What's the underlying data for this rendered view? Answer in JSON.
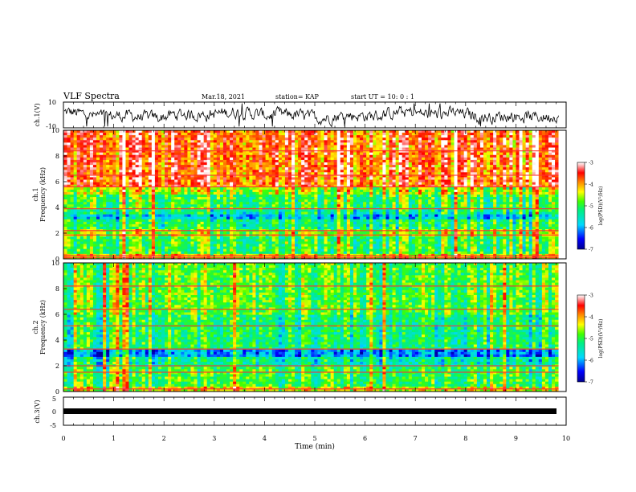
{
  "header": {
    "title": "VLF Spectra",
    "date": "Mar.18, 2021",
    "station": "station= KAP",
    "start": "start  UT =   10: 0  : 1"
  },
  "chart_data": [
    {
      "id": "ch1_waveform",
      "type": "line",
      "ylabel": "ch.1(V)",
      "ylim": [
        -10,
        10
      ],
      "yticks": [
        "10",
        "-10"
      ],
      "xlim": [
        0,
        10
      ],
      "series": [
        {
          "style": "noisy-trace",
          "color": "#000000",
          "mean": 0,
          "amplitude": 4.5,
          "x_end": 9.85
        }
      ]
    },
    {
      "id": "ch1_spectrogram",
      "type": "heatmap",
      "ylabel": "ch.1\nFrequency (kHz)",
      "ylim": [
        0,
        10
      ],
      "yticks": [
        "0",
        "2",
        "4",
        "6",
        "8",
        "10"
      ],
      "xlim": [
        0,
        10
      ],
      "x_end": 9.85,
      "bands_log_psd": [
        {
          "f": [
            0.0,
            0.3
          ],
          "v": -4.3
        },
        {
          "f": [
            0.3,
            1.8
          ],
          "v": -5.0
        },
        {
          "f": [
            1.8,
            2.3
          ],
          "v": -4.6
        },
        {
          "f": [
            2.3,
            3.0
          ],
          "v": -5.2
        },
        {
          "f": [
            3.0,
            3.5
          ],
          "v": -5.8
        },
        {
          "f": [
            3.5,
            3.9
          ],
          "v": -5.3
        },
        {
          "f": [
            3.9,
            5.0
          ],
          "v": -5.0
        },
        {
          "f": [
            5.0,
            5.6
          ],
          "v": -4.5
        },
        {
          "f": [
            5.6,
            10.0
          ],
          "v": -3.7
        }
      ],
      "colorbar": {
        "label": "log(PSD)(V²/Hz)",
        "range": [
          -7,
          -3
        ],
        "ticks": [
          "-3",
          "-4",
          "-5",
          "-6",
          "-7"
        ]
      }
    },
    {
      "id": "ch2_spectrogram",
      "type": "heatmap",
      "ylabel": "ch.2\nFrequency (kHz)",
      "ylim": [
        0,
        10
      ],
      "yticks": [
        "0",
        "2",
        "4",
        "6",
        "8",
        "10"
      ],
      "xlim": [
        0,
        10
      ],
      "x_end": 9.85,
      "bands_log_psd": [
        {
          "f": [
            0.0,
            0.3
          ],
          "v": -4.5
        },
        {
          "f": [
            0.3,
            2.0
          ],
          "v": -5.1
        },
        {
          "f": [
            2.0,
            2.6
          ],
          "v": -5.5
        },
        {
          "f": [
            2.6,
            3.3
          ],
          "v": -6.2
        },
        {
          "f": [
            3.3,
            6.0
          ],
          "v": -5.3
        },
        {
          "f": [
            6.0,
            10.0
          ],
          "v": -5.0
        }
      ],
      "colorbar": {
        "label": "log(PSD)(V²/Hz)",
        "range": [
          -7,
          -3
        ],
        "ticks": [
          "-3",
          "-4",
          "-5",
          "-6",
          "-7"
        ]
      }
    },
    {
      "id": "ch3_waveform",
      "type": "line",
      "ylabel": "ch.3(V)",
      "ylim": [
        -5,
        5
      ],
      "yticks": [
        "5",
        "0",
        "-5"
      ],
      "xlim": [
        0,
        10
      ],
      "xlabel": "Time (min)",
      "xticks": [
        "0",
        "1",
        "2",
        "3",
        "4",
        "5",
        "6",
        "7",
        "8",
        "9",
        "10"
      ],
      "series": [
        {
          "style": "flat-thick",
          "color": "#000000",
          "value": 0,
          "x_end": 9.85
        }
      ]
    }
  ]
}
